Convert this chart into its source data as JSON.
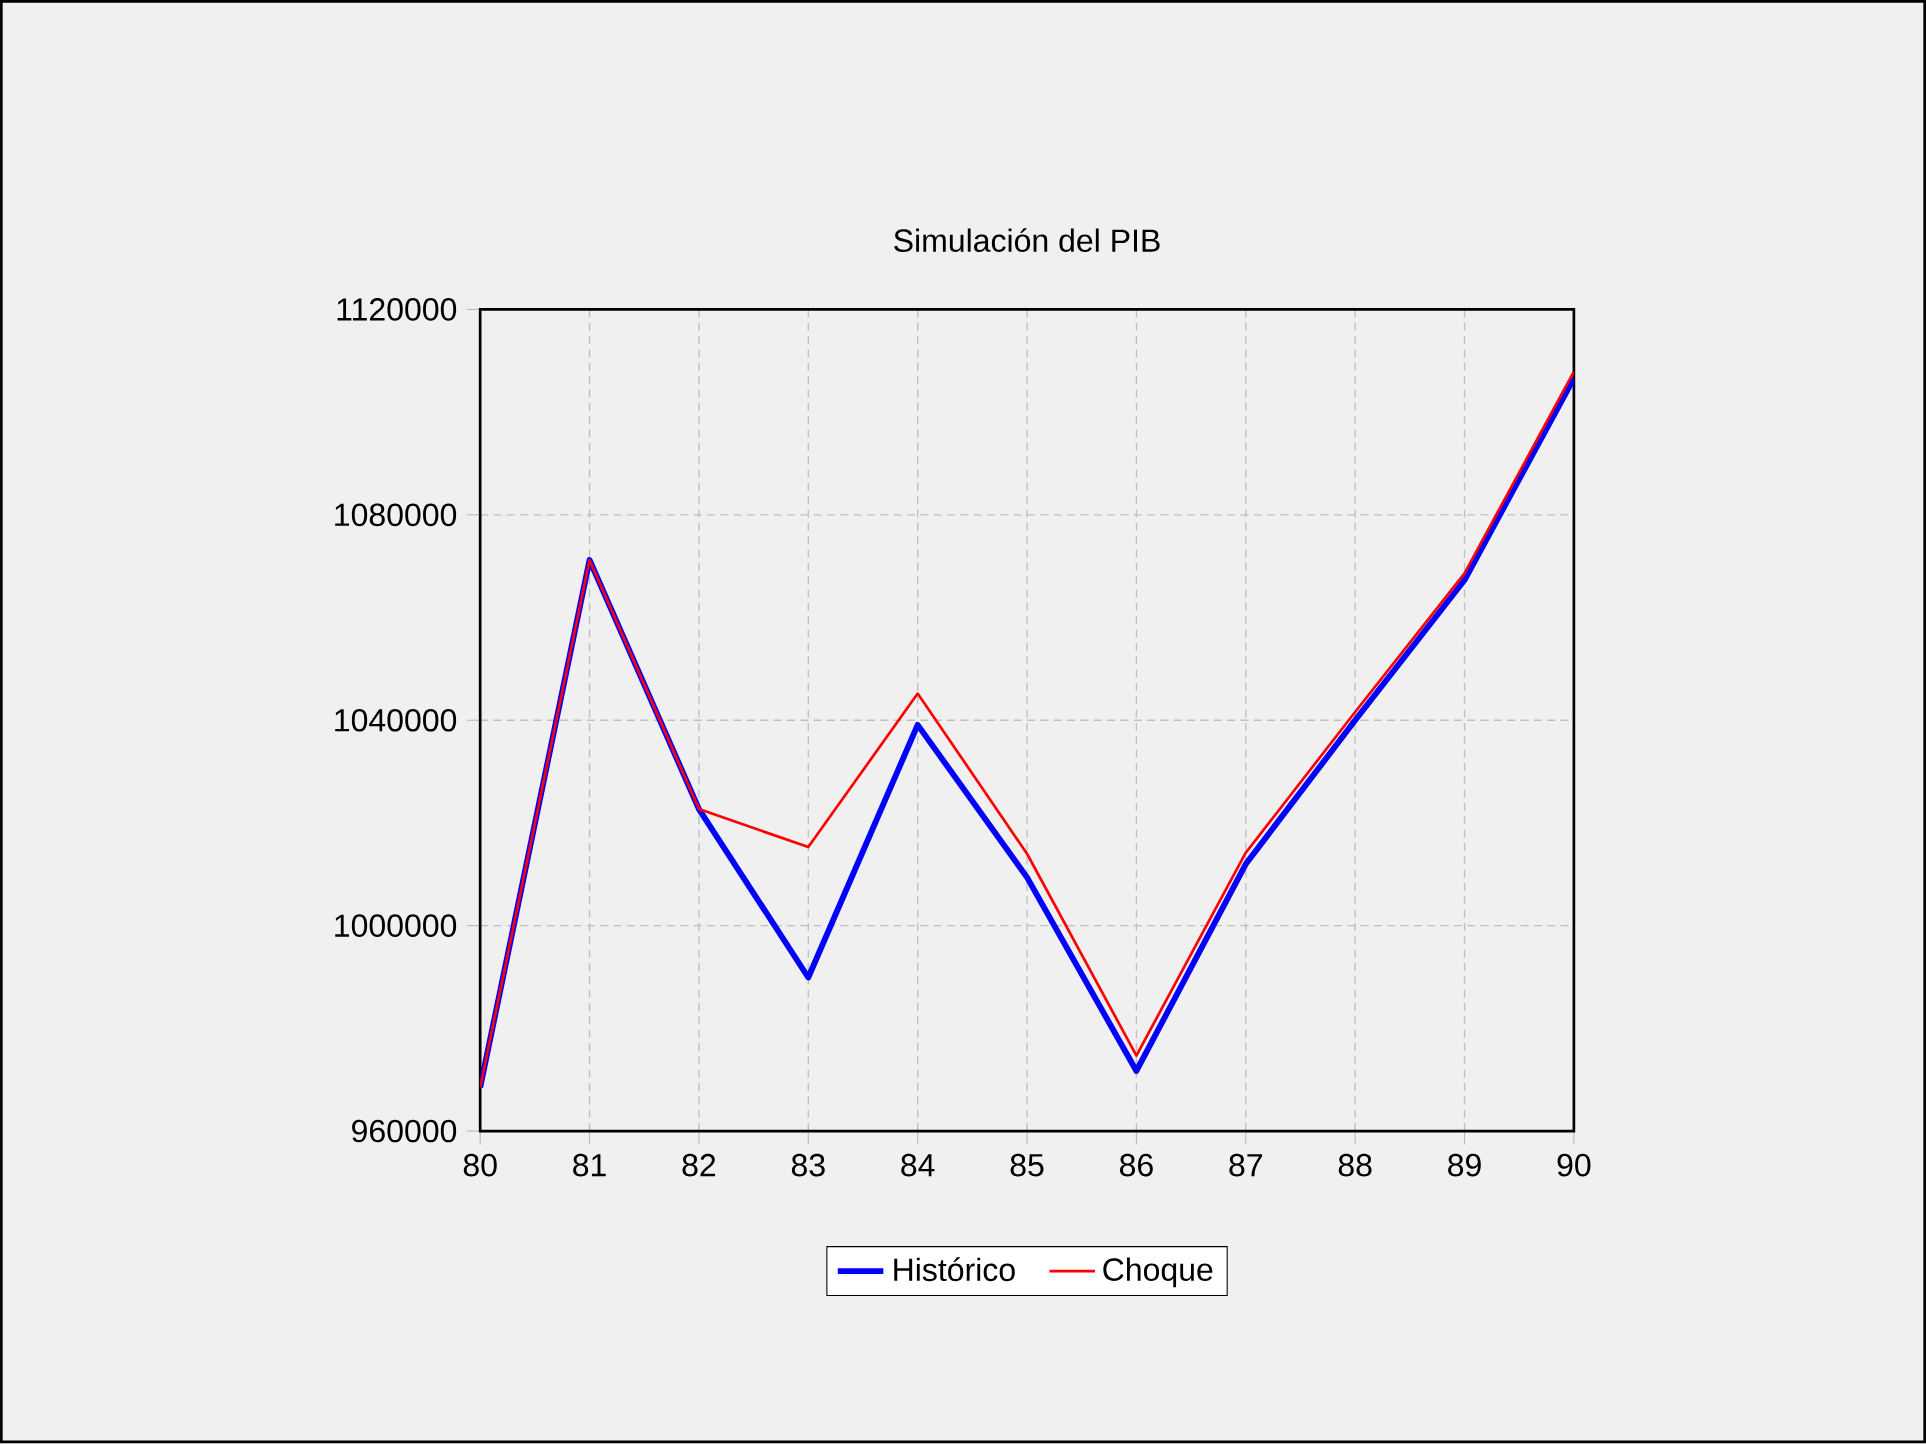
{
  "chart_data": {
    "type": "line",
    "title": "Simulación del PIB",
    "categories": [
      "80",
      "81",
      "82",
      "83",
      "84",
      "85",
      "86",
      "87",
      "88",
      "89",
      "90"
    ],
    "series": [
      {
        "name": "Histórico",
        "color": "#0000ff",
        "values": [
          968500,
          1071200,
          1022700,
          989900,
          1039100,
          1009400,
          971700,
          1012000,
          1040000,
          1067300,
          1106600
        ]
      },
      {
        "name": "Choque",
        "color": "#ff0000",
        "values": [
          968500,
          1071200,
          1022700,
          1015300,
          1045200,
          1014000,
          974700,
          1014200,
          1041600,
          1068600,
          1107900
        ]
      }
    ],
    "ylim": [
      960000,
      1120000
    ],
    "yticks": [
      960000,
      1000000,
      1040000,
      1080000,
      1120000
    ],
    "grid": true,
    "legend": "bottom",
    "marker": "none",
    "line_style": "solid"
  }
}
